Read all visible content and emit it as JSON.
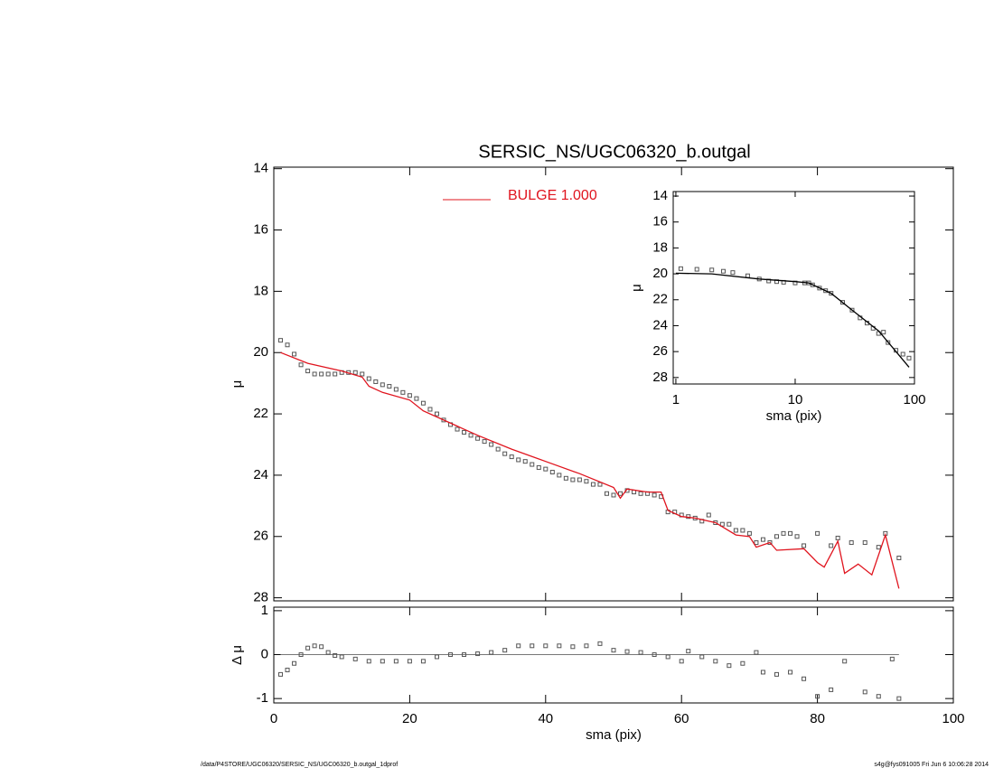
{
  "chart_data": [
    {
      "type": "scatter",
      "title": "SERSIC_NS/UGC06320_b.outgal",
      "ylabel": "μ",
      "xlim": [
        0,
        100
      ],
      "ylim": [
        28.1,
        13.95
      ],
      "yticks": [
        14,
        16,
        18,
        20,
        22,
        24,
        26,
        28
      ],
      "xticks": [
        0,
        20,
        40,
        60,
        80,
        100
      ],
      "series": [
        {
          "mark": "square",
          "color": "#555555",
          "x": [
            1,
            2,
            3,
            4,
            5,
            6,
            7,
            8,
            9,
            10,
            11,
            12,
            13,
            14,
            15,
            16,
            17,
            18,
            19,
            20,
            21,
            22,
            23,
            24,
            25,
            26,
            27,
            28,
            29,
            30,
            31,
            32,
            33,
            34,
            35,
            36,
            37,
            38,
            39,
            40,
            41,
            42,
            43,
            44,
            45,
            46,
            47,
            48,
            49,
            50,
            51,
            52,
            53,
            54,
            55,
            56,
            57,
            58,
            59,
            60,
            61,
            62,
            63,
            64,
            65,
            66,
            67,
            68,
            69,
            70,
            71,
            72,
            73,
            74,
            75,
            76,
            77,
            78,
            80,
            82,
            83,
            85,
            87,
            89,
            90,
            92
          ],
          "values": [
            19.6,
            19.75,
            20.05,
            20.4,
            20.6,
            20.7,
            20.7,
            20.7,
            20.7,
            20.65,
            20.65,
            20.65,
            20.7,
            20.85,
            20.95,
            21.05,
            21.1,
            21.2,
            21.3,
            21.4,
            21.5,
            21.65,
            21.85,
            22.0,
            22.2,
            22.35,
            22.5,
            22.6,
            22.7,
            22.8,
            22.9,
            23.0,
            23.15,
            23.3,
            23.4,
            23.5,
            23.55,
            23.65,
            23.75,
            23.8,
            23.9,
            24.0,
            24.1,
            24.15,
            24.15,
            24.2,
            24.3,
            24.3,
            24.6,
            24.65,
            24.6,
            24.5,
            24.55,
            24.6,
            24.6,
            24.65,
            24.7,
            25.2,
            25.2,
            25.3,
            25.35,
            25.4,
            25.5,
            25.3,
            25.55,
            25.6,
            25.6,
            25.8,
            25.8,
            25.9,
            26.2,
            26.1,
            26.2,
            26.0,
            25.9,
            25.9,
            26.0,
            26.3,
            25.9,
            26.3,
            26.05,
            26.2,
            26.2,
            26.35,
            25.9,
            26.7
          ]
        },
        {
          "mark": "line",
          "name": "BULGE  1.000",
          "color": "#e0141e",
          "x": [
            1,
            5,
            10,
            13,
            14,
            16,
            20,
            22,
            25,
            30,
            35,
            40,
            45,
            50,
            51,
            52,
            55,
            57,
            58,
            60,
            62,
            65,
            68,
            70,
            71,
            73,
            74,
            78,
            80,
            81,
            83,
            84,
            86,
            88,
            90,
            92
          ],
          "values": [
            20.0,
            20.35,
            20.6,
            20.8,
            21.1,
            21.3,
            21.55,
            21.9,
            22.2,
            22.7,
            23.15,
            23.55,
            23.95,
            24.4,
            24.75,
            24.45,
            24.55,
            24.55,
            25.15,
            25.35,
            25.4,
            25.55,
            25.95,
            26.0,
            26.35,
            26.2,
            26.45,
            26.4,
            26.85,
            27.0,
            26.15,
            27.2,
            26.9,
            27.25,
            25.95,
            27.7
          ]
        }
      ]
    },
    {
      "type": "scatter",
      "ylabel": "Δ μ",
      "xlabel": "sma (pix)",
      "xlim": [
        0,
        100
      ],
      "ylim": [
        -1.1,
        1.08
      ],
      "yticks": [
        -1,
        0,
        1
      ],
      "xticks": [
        0,
        20,
        40,
        60,
        80,
        100
      ],
      "hline": {
        "value": 0,
        "x": [
          1,
          92
        ]
      },
      "series": [
        {
          "mark": "square",
          "color": "#555555",
          "x": [
            1,
            2,
            3,
            4,
            5,
            6,
            7,
            8,
            9,
            10,
            12,
            14,
            16,
            18,
            20,
            22,
            24,
            26,
            28,
            30,
            32,
            34,
            36,
            38,
            40,
            42,
            44,
            46,
            48,
            50,
            52,
            54,
            56,
            58,
            60,
            61,
            63,
            65,
            67,
            69,
            71,
            72,
            74,
            76,
            78,
            80,
            82,
            84,
            87,
            89,
            91,
            92
          ],
          "values": [
            -0.45,
            -0.35,
            -0.2,
            0.0,
            0.15,
            0.2,
            0.18,
            0.05,
            -0.02,
            -0.05,
            -0.1,
            -0.15,
            -0.15,
            -0.15,
            -0.15,
            -0.15,
            -0.05,
            0.0,
            0.0,
            0.02,
            0.05,
            0.1,
            0.2,
            0.2,
            0.2,
            0.2,
            0.18,
            0.2,
            0.25,
            0.1,
            0.07,
            0.05,
            0.0,
            -0.05,
            -0.15,
            0.08,
            -0.05,
            -0.15,
            -0.25,
            -0.2,
            0.05,
            -0.4,
            -0.45,
            -0.4,
            -0.55,
            -0.95,
            -0.8,
            -0.15,
            -0.85,
            -0.95,
            -0.1,
            -1.0
          ]
        }
      ]
    },
    {
      "type": "scatter",
      "ylabel": "μ",
      "xlabel": "sma (pix)",
      "log_x": true,
      "xlim": [
        0.95,
        100
      ],
      "ylim": [
        28.5,
        13.65
      ],
      "yticks": [
        14,
        16,
        18,
        20,
        22,
        24,
        26,
        28
      ],
      "xticks": [
        1,
        10,
        100
      ],
      "series": [
        {
          "mark": "square",
          "color": "#555555",
          "x": [
            1.1,
            1.5,
            2,
            2.5,
            3,
            4,
            5,
            6,
            7,
            8,
            10,
            12,
            13,
            14,
            16,
            18,
            20,
            25,
            30,
            35,
            40,
            45,
            50,
            55,
            60,
            70,
            80,
            90
          ],
          "values": [
            19.6,
            19.65,
            19.7,
            19.8,
            19.9,
            20.15,
            20.4,
            20.55,
            20.6,
            20.65,
            20.7,
            20.7,
            20.7,
            20.85,
            21.1,
            21.3,
            21.5,
            22.2,
            22.8,
            23.4,
            23.8,
            24.2,
            24.6,
            24.5,
            25.3,
            25.9,
            26.2,
            26.5
          ]
        },
        {
          "mark": "line",
          "color": "#000000",
          "x": [
            1,
            2,
            5,
            10,
            13,
            20,
            30,
            50,
            70,
            90
          ],
          "values": [
            19.95,
            20.0,
            20.4,
            20.6,
            20.7,
            21.5,
            22.8,
            24.4,
            26.0,
            27.2
          ]
        }
      ]
    }
  ],
  "footer": {
    "left": "/data/P4STORE/UGC06320/SERSIC_NS/UGC06320_b.outgal_1dprof",
    "right": "s4g@fys091005  Fri Jun  6 10:06:28 2014"
  }
}
